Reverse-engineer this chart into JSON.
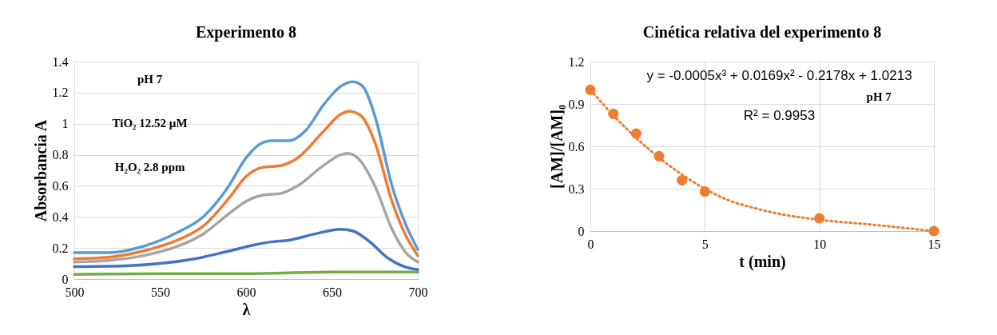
{
  "chart_data": [
    {
      "type": "line",
      "title": "Experimento 8",
      "xlabel": "λ",
      "ylabel": "Absorbancia A",
      "xlim": [
        500,
        700
      ],
      "xticks": [
        500,
        550,
        600,
        650,
        700
      ],
      "ylim": [
        0,
        1.4
      ],
      "yticks": [
        0,
        0.2,
        0.4,
        0.6,
        0.8,
        1,
        1.2,
        1.4
      ],
      "grid": "y",
      "marker": "none",
      "line_style": "solid",
      "annotations": [
        "pH 7",
        "TiO₂ 12.52 µM",
        "H₂O₂ 2.8 ppm"
      ],
      "series": [
        {
          "color": "#5b9bd5",
          "x": [
            500,
            520,
            540,
            560,
            575,
            590,
            600,
            610,
            615,
            625,
            635,
            645,
            655,
            662,
            668,
            675,
            685,
            693,
            700
          ],
          "values": [
            0.17,
            0.17,
            0.21,
            0.3,
            0.4,
            0.6,
            0.78,
            0.88,
            0.89,
            0.89,
            0.96,
            1.12,
            1.24,
            1.27,
            1.24,
            1.05,
            0.6,
            0.35,
            0.19
          ]
        },
        {
          "color": "#ed7d31",
          "x": [
            500,
            520,
            540,
            560,
            575,
            590,
            600,
            610,
            620,
            630,
            645,
            655,
            660,
            667,
            675,
            685,
            693,
            700
          ],
          "values": [
            0.13,
            0.14,
            0.18,
            0.25,
            0.34,
            0.52,
            0.66,
            0.72,
            0.73,
            0.78,
            0.95,
            1.06,
            1.08,
            1.05,
            0.88,
            0.5,
            0.28,
            0.15
          ]
        },
        {
          "color": "#a5a5a5",
          "x": [
            500,
            520,
            540,
            560,
            575,
            590,
            600,
            610,
            620,
            630,
            645,
            655,
            659,
            665,
            675,
            685,
            693,
            700
          ],
          "values": [
            0.11,
            0.12,
            0.15,
            0.21,
            0.29,
            0.42,
            0.5,
            0.54,
            0.55,
            0.6,
            0.73,
            0.8,
            0.81,
            0.78,
            0.6,
            0.32,
            0.17,
            0.11
          ]
        },
        {
          "color": "#4472c4",
          "x": [
            500,
            530,
            550,
            570,
            590,
            605,
            615,
            625,
            640,
            655,
            662,
            672,
            682,
            692,
            700
          ],
          "values": [
            0.08,
            0.085,
            0.1,
            0.13,
            0.18,
            0.22,
            0.24,
            0.25,
            0.29,
            0.32,
            0.31,
            0.24,
            0.14,
            0.08,
            0.06
          ]
        },
        {
          "color": "#70ad47",
          "x": [
            500,
            550,
            600,
            650,
            700
          ],
          "values": [
            0.03,
            0.035,
            0.035,
            0.045,
            0.045
          ]
        }
      ]
    },
    {
      "type": "scatter",
      "title": "Cinética relativa del experimento 8",
      "xlabel": "t (min)",
      "ylabel": "[AM]/[AM]₀",
      "xlim": [
        0,
        15
      ],
      "xticks": [
        0,
        5,
        10,
        15
      ],
      "ylim": [
        0,
        1.2
      ],
      "yticks": [
        0,
        0.3,
        0.6,
        0.9,
        1.2
      ],
      "grid": true,
      "annotations": [
        "y = -0.0005x³ + 0.0169x² - 0.2178x + 1.0213",
        "R² = 0.9953",
        "pH 7"
      ],
      "x": [
        0,
        1,
        2,
        3,
        4,
        5,
        10,
        15
      ],
      "series": [
        {
          "type": "line",
          "line_style": "dotted",
          "color": "#ed7d31",
          "x": [
            0,
            1,
            2,
            3,
            4,
            5,
            6,
            7,
            8,
            10,
            12,
            15
          ],
          "values": [
            1.0,
            0.82,
            0.66,
            0.52,
            0.4,
            0.3,
            0.22,
            0.17,
            0.13,
            0.08,
            0.05,
            0.0
          ]
        },
        {
          "type": "scatter",
          "marker": "circle",
          "color": "#ed7d31",
          "values": [
            1.0,
            0.83,
            0.69,
            0.53,
            0.36,
            0.28,
            0.09,
            0.0
          ]
        }
      ]
    }
  ]
}
